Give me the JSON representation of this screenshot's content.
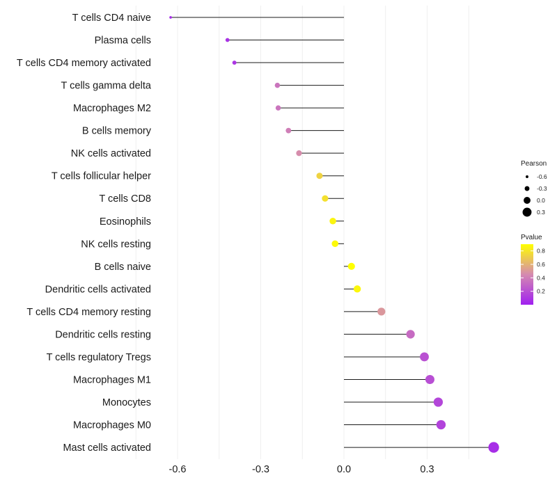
{
  "chart_data": {
    "type": "lollipop",
    "orientation": "horizontal",
    "title": "",
    "xlabel": "",
    "ylabel": "",
    "xlim": [
      -0.75,
      0.55
    ],
    "x_ticks": [
      -0.6,
      -0.3,
      0.0,
      0.3
    ],
    "x_tick_labels": [
      "-0.6",
      "-0.3",
      "0.0",
      "0.3"
    ],
    "grid": true,
    "baseline": 0.0,
    "categories": [
      "T cells CD4 naive",
      "Plasma cells",
      "T cells CD4 memory activated",
      "T cells gamma delta",
      "Macrophages M2",
      "B cells memory",
      "NK cells activated",
      "T cells follicular helper",
      "T cells CD8",
      "Eosinophils",
      "NK cells resting",
      "B cells naive",
      "Dendritic cells activated",
      "T cells CD4 memory resting",
      "Dendritic cells resting",
      "T cells regulatory  Tregs ",
      "Macrophages M1",
      "Monocytes",
      "Macrophages M0",
      "Mast cells activated"
    ],
    "pearson": [
      -0.625,
      -0.42,
      -0.395,
      -0.24,
      -0.237,
      -0.2,
      -0.162,
      -0.088,
      -0.068,
      -0.04,
      -0.032,
      0.027,
      0.048,
      0.135,
      0.24,
      0.29,
      0.31,
      0.34,
      0.35,
      0.54
    ],
    "pvalue": [
      0.05,
      0.08,
      0.09,
      0.36,
      0.36,
      0.4,
      0.46,
      0.73,
      0.78,
      0.86,
      0.88,
      0.9,
      0.87,
      0.5,
      0.32,
      0.21,
      0.2,
      0.16,
      0.15,
      0.06
    ],
    "size_legend": {
      "title": "Pearson",
      "values": [
        -0.6,
        -0.3,
        0.0,
        0.3
      ],
      "labels": [
        "-0.6",
        "-0.3",
        "0.0",
        "0.3"
      ]
    },
    "color_legend": {
      "title": "Pvalue",
      "range": [
        0.0,
        0.9
      ],
      "ticks": [
        0.2,
        0.4,
        0.6,
        0.8
      ],
      "tick_labels": [
        "0.2",
        "0.4",
        "0.6",
        "0.8"
      ],
      "low_color": "#a020f0",
      "mid_color": "#d58ab0",
      "high_color": "#ffff00"
    },
    "line_color": "#1a1a1a",
    "grid_color": "#ebebeb"
  }
}
